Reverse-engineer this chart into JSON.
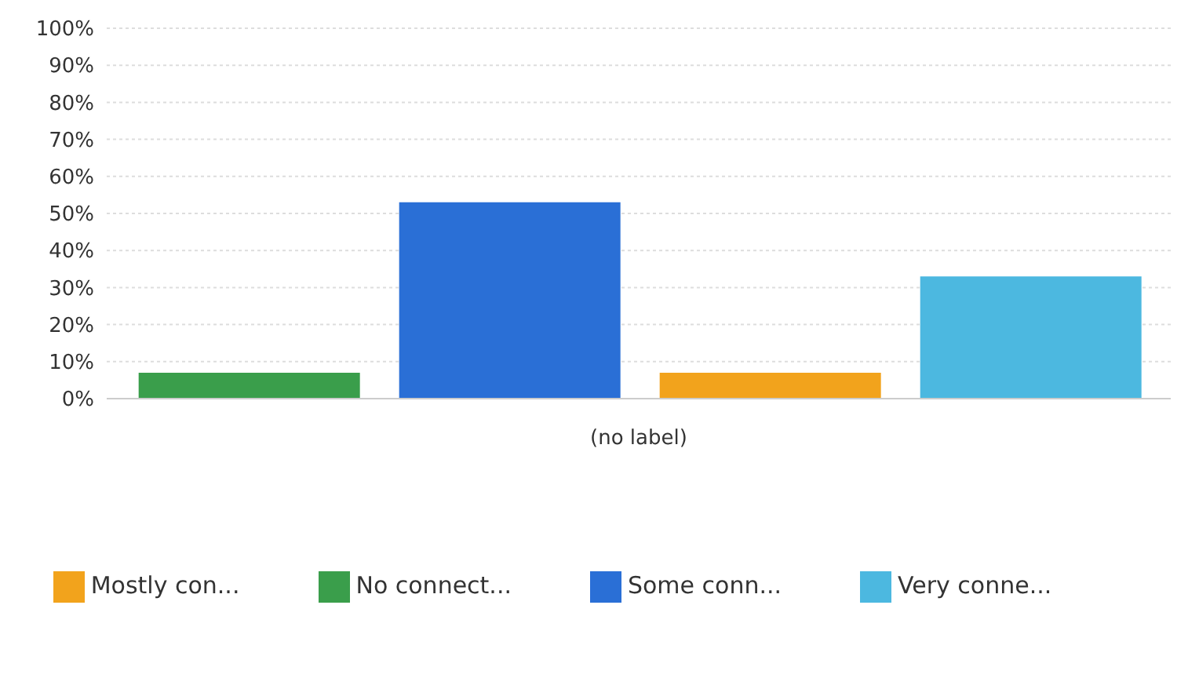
{
  "chart_data": {
    "type": "bar",
    "categories": [
      "(no label)"
    ],
    "series": [
      {
        "name": "No connect...",
        "color": "#3a9e4b",
        "values": [
          7
        ]
      },
      {
        "name": "Some conn...",
        "color": "#2a6fd6",
        "values": [
          53
        ]
      },
      {
        "name": "Mostly con...",
        "color": "#f2a31c",
        "values": [
          7
        ]
      },
      {
        "name": "Very conne...",
        "color": "#4cb8e0",
        "values": [
          33
        ]
      }
    ],
    "ylim": [
      0,
      100
    ],
    "yticks": [
      {
        "value": 0,
        "label": "0%"
      },
      {
        "value": 10,
        "label": "10%"
      },
      {
        "value": 20,
        "label": "20%"
      },
      {
        "value": 30,
        "label": "30%"
      },
      {
        "value": 40,
        "label": "40%"
      },
      {
        "value": 50,
        "label": "50%"
      },
      {
        "value": 60,
        "label": "60%"
      },
      {
        "value": 70,
        "label": "70%"
      },
      {
        "value": 80,
        "label": "80%"
      },
      {
        "value": 90,
        "label": "90%"
      },
      {
        "value": 100,
        "label": "100%"
      }
    ],
    "grid": "y",
    "legend": "bottom"
  }
}
